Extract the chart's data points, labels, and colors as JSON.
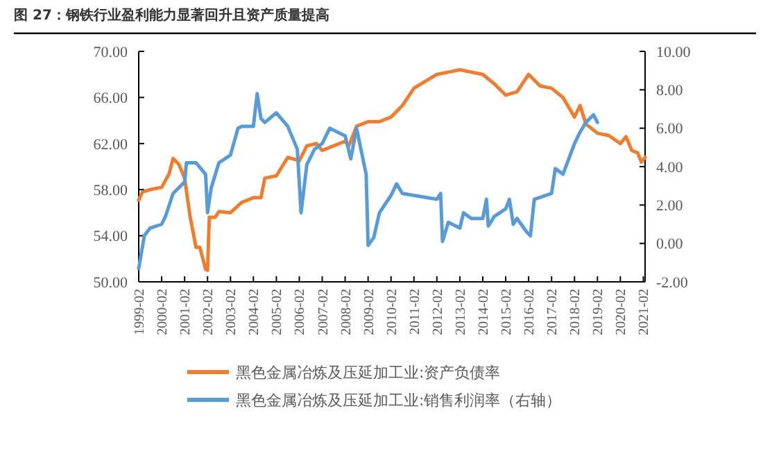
{
  "chart_data": {
    "type": "line",
    "title": "图 27：钢铁行业盈利能力显著回升且资产质量提高",
    "legend": "bottom",
    "xlim": [
      "1999-02",
      "2021-03"
    ],
    "xticks": [
      "1999-02",
      "2000-02",
      "2001-02",
      "2002-02",
      "2003-02",
      "2004-02",
      "2005-02",
      "2006-02",
      "2007-02",
      "2008-02",
      "2009-02",
      "2010-02",
      "2011-02",
      "2012-02",
      "2013-02",
      "2014-02",
      "2015-02",
      "2016-02",
      "2017-02",
      "2018-02",
      "2019-02",
      "2020-02",
      "2021-02"
    ],
    "ylim": [
      50,
      70
    ],
    "yticks": [
      {
        "value": 50,
        "label": "50.00"
      },
      {
        "value": 54,
        "label": "54.00"
      },
      {
        "value": 58,
        "label": "58.00"
      },
      {
        "value": 62,
        "label": "62.00"
      },
      {
        "value": 66,
        "label": "66.00"
      },
      {
        "value": 70,
        "label": "70.00"
      }
    ],
    "y2lim": [
      -2,
      10
    ],
    "y2ticks": [
      {
        "value": -2,
        "label": "-2.00"
      },
      {
        "value": 0,
        "label": "0.00"
      },
      {
        "value": 2,
        "label": "2.00"
      },
      {
        "value": 4,
        "label": "4.00"
      },
      {
        "value": 6,
        "label": "6.00"
      },
      {
        "value": 8,
        "label": "8.00"
      },
      {
        "value": 10,
        "label": "10.00"
      }
    ],
    "series": [
      {
        "name": "黑色金属冶炼及压延加工业:资产负债率",
        "color": "#ed7d31",
        "x": [
          "1999-02",
          "1999-04",
          "1999-08",
          "2000-02",
          "2000-06",
          "2000-08",
          "2000-11",
          "2001-02",
          "2001-05",
          "2001-08",
          "2001-10",
          "2002-01",
          "2002-02",
          "2002-03",
          "2002-06",
          "2002-08",
          "2003-02",
          "2003-08",
          "2004-02",
          "2004-06",
          "2004-08",
          "2005-02",
          "2005-08",
          "2006-02",
          "2006-06",
          "2006-11",
          "2007-02",
          "2007-08",
          "2008-02",
          "2008-04",
          "2008-08",
          "2009-02",
          "2009-08",
          "2010-02",
          "2010-08",
          "2011-02",
          "2011-08",
          "2012-02",
          "2012-08",
          "2013-02",
          "2013-08",
          "2014-02",
          "2014-08",
          "2015-02",
          "2015-08",
          "2016-02",
          "2016-08",
          "2017-02",
          "2017-08",
          "2018-02",
          "2018-05",
          "2018-08",
          "2019-02",
          "2019-08",
          "2020-02",
          "2020-05",
          "2020-08",
          "2020-11",
          "2021-01",
          "2021-03"
        ],
        "values": [
          57.1,
          57.8,
          58.0,
          58.2,
          59.4,
          60.7,
          60.2,
          59.0,
          55.6,
          53.0,
          53.0,
          51.1,
          51.0,
          55.6,
          55.6,
          56.1,
          56.0,
          56.9,
          57.3,
          57.3,
          59.0,
          59.2,
          60.8,
          60.5,
          61.8,
          62.0,
          61.4,
          61.8,
          62.2,
          61.8,
          63.5,
          63.9,
          63.9,
          64.3,
          65.3,
          66.8,
          67.4,
          68.0,
          68.2,
          68.4,
          68.2,
          68.0,
          67.2,
          66.2,
          66.5,
          68.0,
          67.0,
          66.8,
          66.0,
          64.3,
          65.3,
          63.7,
          62.9,
          62.7,
          62.0,
          62.6,
          61.4,
          61.2,
          60.4,
          60.8
        ]
      },
      {
        "name": "黑色金属冶炼及压延加工业:销售利润率（右轴）",
        "color": "#5b9bd5",
        "axis": "y2",
        "x": [
          "1999-02",
          "1999-05",
          "1999-08",
          "2000-02",
          "2000-04",
          "2000-08",
          "2001-02",
          "2001-03",
          "2001-08",
          "2002-01",
          "2002-02",
          "2002-04",
          "2002-08",
          "2003-02",
          "2003-06",
          "2003-08",
          "2004-02",
          "2004-04",
          "2004-06",
          "2004-08",
          "2005-02",
          "2005-08",
          "2006-01",
          "2006-03",
          "2006-06",
          "2006-10",
          "2007-02",
          "2007-06",
          "2008-02",
          "2008-05",
          "2008-08",
          "2009-01",
          "2009-02",
          "2009-05",
          "2009-08",
          "2010-02",
          "2010-05",
          "2010-08",
          "2011-02",
          "2011-08",
          "2012-02",
          "2012-04",
          "2012-05",
          "2012-08",
          "2013-02",
          "2013-04",
          "2013-08",
          "2014-02",
          "2014-04",
          "2014-05",
          "2014-08",
          "2015-02",
          "2015-04",
          "2015-06",
          "2015-08",
          "2016-01",
          "2016-03",
          "2016-05",
          "2016-08",
          "2017-02",
          "2017-04",
          "2017-08",
          "2018-02",
          "2018-05",
          "2018-08",
          "2018-12",
          "2019-02"
        ],
        "values": [
          -1.3,
          0.4,
          0.8,
          1.0,
          1.4,
          2.6,
          3.2,
          4.2,
          4.2,
          3.6,
          1.6,
          2.9,
          4.2,
          4.6,
          6.0,
          6.1,
          6.1,
          7.8,
          6.5,
          6.3,
          6.8,
          6.1,
          4.9,
          1.6,
          4.1,
          4.9,
          5.2,
          6.0,
          5.6,
          4.4,
          6.0,
          3.6,
          -0.1,
          0.3,
          1.6,
          2.5,
          3.1,
          2.6,
          2.5,
          2.4,
          2.3,
          2.6,
          0.1,
          1.1,
          0.8,
          1.6,
          1.3,
          1.3,
          2.3,
          0.9,
          1.4,
          1.8,
          2.3,
          1.0,
          1.3,
          0.6,
          0.4,
          2.3,
          2.4,
          2.6,
          3.9,
          3.6,
          5.2,
          5.8,
          6.3,
          6.7,
          6.3
        ]
      }
    ]
  }
}
